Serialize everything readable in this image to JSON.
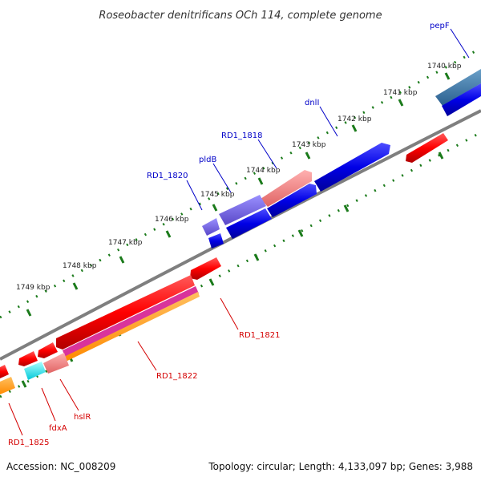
{
  "title": "Roseobacter denitrificans OCh 114, complete genome",
  "footer": {
    "accession": "Accession: NC_008209",
    "summary": "Topology: circular; Length: 4,133,097 bp; Genes: 3,988"
  },
  "ticks": [
    "1740 kbp",
    "1741 kbp",
    "1742 kbp",
    "1743 kbp",
    "1744 kbp",
    "1745 kbp",
    "1746 kbp",
    "1747 kbp",
    "1748 kbp",
    "1749 kbp"
  ],
  "top_labels": [
    "pepF",
    "dnlI",
    "RD1_1818",
    "pldB",
    "RD1_1820"
  ],
  "bottom_labels": [
    "RD1_1821",
    "RD1_1822",
    "hslR",
    "fdxA",
    "RD1_1825"
  ],
  "colors": {
    "forward_strand": "#0000e0",
    "reverse_strand": "#ff0000",
    "backbone": "#808080",
    "tick_marks": "#1a7a1a"
  }
}
